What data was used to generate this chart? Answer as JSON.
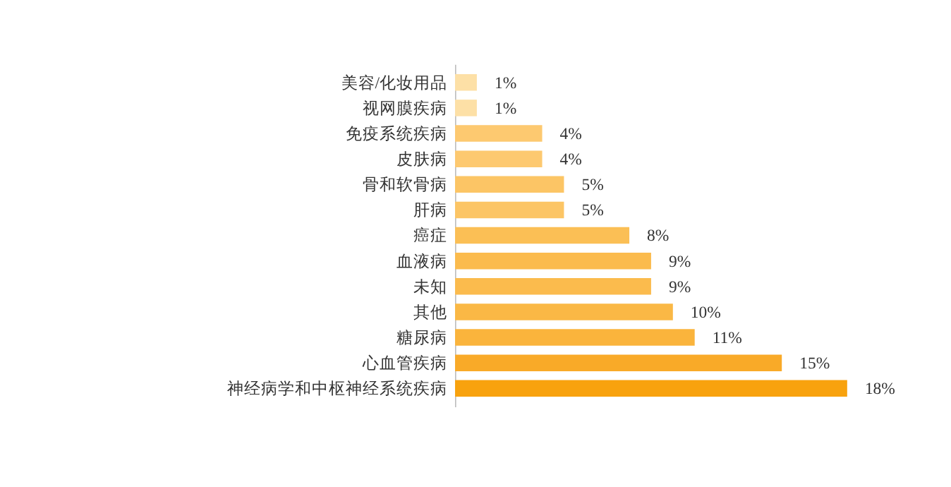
{
  "chart_data": {
    "type": "bar",
    "orientation": "horizontal",
    "categories": [
      "美容/化妆用品",
      "视网膜疾病",
      "免疫系统疾病",
      "皮肤病",
      "骨和软骨病",
      "肝病",
      "癌症",
      "血液病",
      "未知",
      "其他",
      "糖尿病",
      "心血管疾病",
      "神经病学和中枢神经系统疾病"
    ],
    "values": [
      1,
      1,
      4,
      4,
      5,
      5,
      8,
      9,
      9,
      10,
      11,
      15,
      18
    ],
    "value_labels": [
      "1%",
      "1%",
      "4%",
      "4%",
      "5%",
      "5%",
      "8%",
      "9%",
      "9%",
      "10%",
      "11%",
      "15%",
      "18%"
    ],
    "colors": [
      "#fde0a6",
      "#fde0a6",
      "#fdc970",
      "#fdc970",
      "#fcc565",
      "#fcc565",
      "#fbbf55",
      "#fbbb4d",
      "#fbbb4d",
      "#fab845",
      "#fab43c",
      "#f9aa28",
      "#f8a20e"
    ],
    "tick_labels": "y"
  }
}
